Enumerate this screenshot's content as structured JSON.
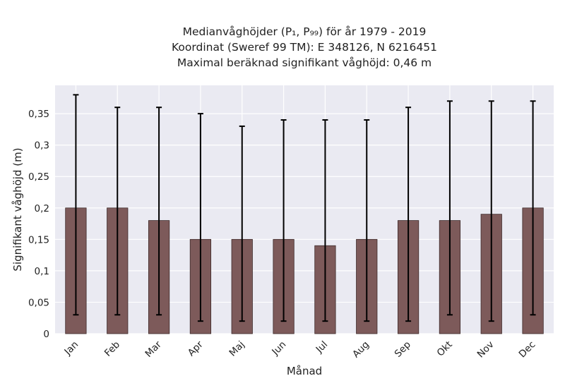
{
  "chart_data": {
    "type": "bar",
    "title_lines": [
      "Medianvåghöjder (P₁, P₉₉) för år 1979 - 2019",
      "Koordinat (Sweref 99 TM): E 348126, N 6216451",
      "Maximal beräknad signifikant våghöjd: 0,46 m"
    ],
    "xlabel": "Månad",
    "ylabel": "Signifikant våghöjd (m)",
    "categories": [
      "Jan",
      "Feb",
      "Mar",
      "Apr",
      "Maj",
      "Jun",
      "Jul",
      "Aug",
      "Sep",
      "Okt",
      "Nov",
      "Dec"
    ],
    "values": [
      0.2,
      0.2,
      0.18,
      0.15,
      0.15,
      0.15,
      0.14,
      0.15,
      0.18,
      0.18,
      0.19,
      0.2
    ],
    "error_low": [
      0.03,
      0.03,
      0.03,
      0.02,
      0.02,
      0.02,
      0.02,
      0.02,
      0.02,
      0.03,
      0.02,
      0.03
    ],
    "error_high": [
      0.38,
      0.36,
      0.36,
      0.35,
      0.33,
      0.34,
      0.34,
      0.34,
      0.36,
      0.37,
      0.37,
      0.37
    ],
    "ylim": [
      0,
      0.395
    ],
    "yticks": [
      0,
      0.05,
      0.1,
      0.15,
      0.2,
      0.25,
      0.3,
      0.35
    ],
    "ytick_labels": [
      "0",
      "0,05",
      "0,1",
      "0,15",
      "0,2",
      "0,25",
      "0,3",
      "0,35"
    ],
    "grid": true,
    "bar_color": "#7d5a5a",
    "background_color": "#eaeaf2",
    "error_bar_color": "#000000"
  }
}
